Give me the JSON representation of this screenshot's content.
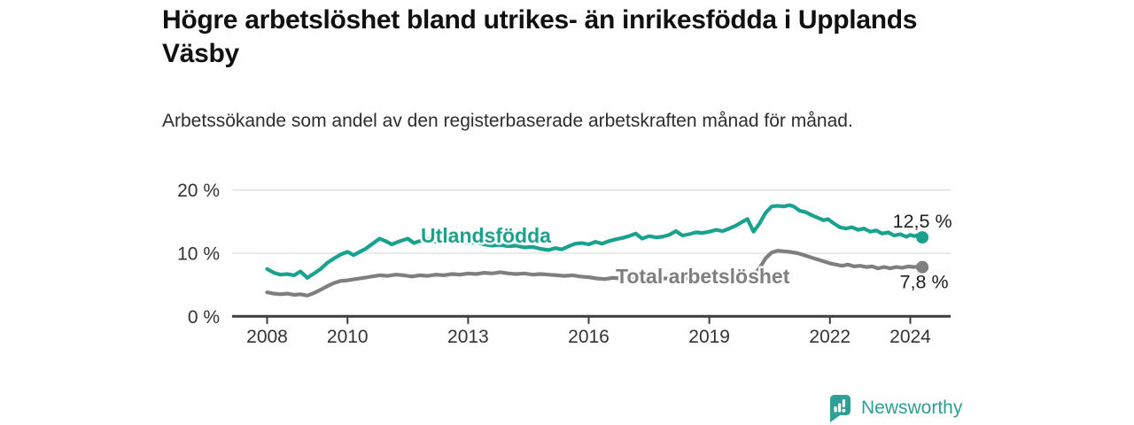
{
  "chart_data": {
    "type": "line",
    "title": "Högre arbetslöshet bland utrikes- än inrikesfödda i Upplands Väsby",
    "subtitle": "Arbetssökande som andel av den registerbaserade arbetskraften månad för månad.",
    "unit": "%",
    "grid": "horizontal",
    "legend_position": "inline-labels",
    "xlim": [
      2007.1,
      2025.0
    ],
    "ylim": [
      0,
      22
    ],
    "x_ticks": [
      2008,
      2010,
      2013,
      2016,
      2019,
      2022,
      2024
    ],
    "y_ticks": [
      {
        "value": 0,
        "label": "0 %"
      },
      {
        "value": 10,
        "label": "10 %"
      },
      {
        "value": 20,
        "label": "20 %"
      }
    ],
    "series": [
      {
        "name": "Utlandsfödda",
        "color": "#19a28e",
        "end_label": "12,5 %",
        "last_value": 12.5,
        "points": [
          [
            2008.0,
            7.5
          ],
          [
            2008.17,
            6.9
          ],
          [
            2008.33,
            6.6
          ],
          [
            2008.5,
            6.7
          ],
          [
            2008.67,
            6.5
          ],
          [
            2008.83,
            7.1
          ],
          [
            2009.0,
            6.1
          ],
          [
            2009.17,
            6.8
          ],
          [
            2009.33,
            7.5
          ],
          [
            2009.5,
            8.5
          ],
          [
            2009.67,
            9.2
          ],
          [
            2009.83,
            9.8
          ],
          [
            2010.0,
            10.2
          ],
          [
            2010.15,
            9.7
          ],
          [
            2010.3,
            10.2
          ],
          [
            2010.45,
            10.7
          ],
          [
            2010.6,
            11.4
          ],
          [
            2010.8,
            12.3
          ],
          [
            2010.95,
            11.9
          ],
          [
            2011.1,
            11.4
          ],
          [
            2011.3,
            11.9
          ],
          [
            2011.5,
            12.3
          ],
          [
            2011.65,
            11.6
          ],
          [
            2011.83,
            12.0
          ],
          [
            2012.0,
            12.2
          ],
          [
            2012.2,
            11.8
          ],
          [
            2012.4,
            12.0
          ],
          [
            2012.6,
            11.8
          ],
          [
            2012.8,
            11.9
          ],
          [
            2013.0,
            11.6
          ],
          [
            2013.2,
            11.7
          ],
          [
            2013.4,
            11.4
          ],
          [
            2013.6,
            11.2
          ],
          [
            2013.8,
            11.3
          ],
          [
            2014.0,
            11.1
          ],
          [
            2014.2,
            11.2
          ],
          [
            2014.4,
            10.9
          ],
          [
            2014.6,
            11.0
          ],
          [
            2014.8,
            10.7
          ],
          [
            2015.0,
            10.5
          ],
          [
            2015.17,
            10.8
          ],
          [
            2015.33,
            10.6
          ],
          [
            2015.5,
            11.1
          ],
          [
            2015.67,
            11.5
          ],
          [
            2015.83,
            11.6
          ],
          [
            2016.0,
            11.4
          ],
          [
            2016.17,
            11.8
          ],
          [
            2016.33,
            11.5
          ],
          [
            2016.5,
            11.9
          ],
          [
            2016.67,
            12.2
          ],
          [
            2016.83,
            12.4
          ],
          [
            2017.0,
            12.7
          ],
          [
            2017.17,
            13.1
          ],
          [
            2017.33,
            12.3
          ],
          [
            2017.5,
            12.7
          ],
          [
            2017.67,
            12.5
          ],
          [
            2017.83,
            12.6
          ],
          [
            2018.0,
            12.9
          ],
          [
            2018.17,
            13.5
          ],
          [
            2018.33,
            12.8
          ],
          [
            2018.5,
            13.0
          ],
          [
            2018.67,
            13.3
          ],
          [
            2018.83,
            13.2
          ],
          [
            2019.0,
            13.4
          ],
          [
            2019.17,
            13.7
          ],
          [
            2019.33,
            13.5
          ],
          [
            2019.5,
            13.9
          ],
          [
            2019.67,
            14.4
          ],
          [
            2019.83,
            15.0
          ],
          [
            2019.95,
            15.4
          ],
          [
            2020.1,
            13.4
          ],
          [
            2020.25,
            14.7
          ],
          [
            2020.4,
            16.4
          ],
          [
            2020.55,
            17.4
          ],
          [
            2020.7,
            17.5
          ],
          [
            2020.85,
            17.4
          ],
          [
            2021.0,
            17.6
          ],
          [
            2021.1,
            17.4
          ],
          [
            2021.25,
            16.7
          ],
          [
            2021.4,
            16.5
          ],
          [
            2021.55,
            16.0
          ],
          [
            2021.7,
            15.6
          ],
          [
            2021.85,
            15.2
          ],
          [
            2021.95,
            15.4
          ],
          [
            2022.1,
            14.7
          ],
          [
            2022.25,
            14.1
          ],
          [
            2022.4,
            13.9
          ],
          [
            2022.55,
            14.1
          ],
          [
            2022.7,
            13.7
          ],
          [
            2022.85,
            13.9
          ],
          [
            2023.0,
            13.4
          ],
          [
            2023.15,
            13.6
          ],
          [
            2023.3,
            13.1
          ],
          [
            2023.45,
            13.3
          ],
          [
            2023.6,
            12.8
          ],
          [
            2023.75,
            13.0
          ],
          [
            2023.9,
            12.6
          ],
          [
            2024.0,
            12.9
          ],
          [
            2024.1,
            12.7
          ],
          [
            2024.2,
            12.9
          ],
          [
            2024.3,
            12.5
          ]
        ]
      },
      {
        "name": "Total arbetslöshet",
        "color": "#7f7f7f",
        "end_label": "7,8 %",
        "last_value": 7.8,
        "points": [
          [
            2008.0,
            3.8
          ],
          [
            2008.17,
            3.6
          ],
          [
            2008.33,
            3.5
          ],
          [
            2008.5,
            3.6
          ],
          [
            2008.67,
            3.4
          ],
          [
            2008.83,
            3.5
          ],
          [
            2009.0,
            3.3
          ],
          [
            2009.17,
            3.7
          ],
          [
            2009.33,
            4.2
          ],
          [
            2009.5,
            4.8
          ],
          [
            2009.67,
            5.3
          ],
          [
            2009.83,
            5.6
          ],
          [
            2010.0,
            5.7
          ],
          [
            2010.2,
            5.9
          ],
          [
            2010.4,
            6.1
          ],
          [
            2010.6,
            6.3
          ],
          [
            2010.8,
            6.5
          ],
          [
            2011.0,
            6.4
          ],
          [
            2011.2,
            6.6
          ],
          [
            2011.4,
            6.5
          ],
          [
            2011.6,
            6.3
          ],
          [
            2011.8,
            6.5
          ],
          [
            2012.0,
            6.4
          ],
          [
            2012.2,
            6.6
          ],
          [
            2012.4,
            6.5
          ],
          [
            2012.6,
            6.7
          ],
          [
            2012.8,
            6.6
          ],
          [
            2013.0,
            6.8
          ],
          [
            2013.2,
            6.7
          ],
          [
            2013.4,
            6.9
          ],
          [
            2013.6,
            6.8
          ],
          [
            2013.8,
            7.0
          ],
          [
            2014.0,
            6.8
          ],
          [
            2014.2,
            6.7
          ],
          [
            2014.4,
            6.8
          ],
          [
            2014.6,
            6.6
          ],
          [
            2014.8,
            6.7
          ],
          [
            2015.0,
            6.6
          ],
          [
            2015.2,
            6.5
          ],
          [
            2015.4,
            6.4
          ],
          [
            2015.6,
            6.5
          ],
          [
            2015.8,
            6.3
          ],
          [
            2016.0,
            6.2
          ],
          [
            2016.2,
            6.0
          ],
          [
            2016.4,
            5.9
          ],
          [
            2016.6,
            6.1
          ],
          [
            2016.8,
            6.0
          ],
          [
            2017.0,
            6.1
          ],
          [
            2017.2,
            5.9
          ],
          [
            2017.4,
            6.0
          ],
          [
            2017.6,
            5.9
          ],
          [
            2017.8,
            6.0
          ],
          [
            2018.0,
            6.0
          ],
          [
            2018.2,
            6.1
          ],
          [
            2018.4,
            6.0
          ],
          [
            2018.6,
            6.1
          ],
          [
            2018.8,
            6.2
          ],
          [
            2019.0,
            6.3
          ],
          [
            2019.2,
            6.4
          ],
          [
            2019.4,
            6.4
          ],
          [
            2019.6,
            6.5
          ],
          [
            2019.8,
            6.6
          ],
          [
            2019.95,
            6.7
          ],
          [
            2020.1,
            6.6
          ],
          [
            2020.25,
            7.6
          ],
          [
            2020.4,
            9.2
          ],
          [
            2020.55,
            10.1
          ],
          [
            2020.7,
            10.4
          ],
          [
            2020.85,
            10.3
          ],
          [
            2021.0,
            10.2
          ],
          [
            2021.2,
            10.0
          ],
          [
            2021.4,
            9.6
          ],
          [
            2021.6,
            9.2
          ],
          [
            2021.8,
            8.8
          ],
          [
            2022.0,
            8.4
          ],
          [
            2022.15,
            8.2
          ],
          [
            2022.3,
            8.0
          ],
          [
            2022.45,
            8.2
          ],
          [
            2022.6,
            7.9
          ],
          [
            2022.75,
            8.0
          ],
          [
            2022.9,
            7.8
          ],
          [
            2023.05,
            7.9
          ],
          [
            2023.2,
            7.6
          ],
          [
            2023.35,
            7.8
          ],
          [
            2023.5,
            7.6
          ],
          [
            2023.65,
            7.8
          ],
          [
            2023.8,
            7.7
          ],
          [
            2023.95,
            7.9
          ],
          [
            2024.1,
            7.8
          ],
          [
            2024.2,
            7.9
          ],
          [
            2024.3,
            7.8
          ]
        ]
      }
    ],
    "colors": {
      "axis": "#3d3d3d",
      "gridline": "#d9d9d9",
      "tick_text": "#333333",
      "end_label_text": "#1d1d1d"
    }
  },
  "branding": {
    "name": "Newsworthy",
    "logo_color": "#2fa096",
    "text_color": "#2d9e94"
  }
}
